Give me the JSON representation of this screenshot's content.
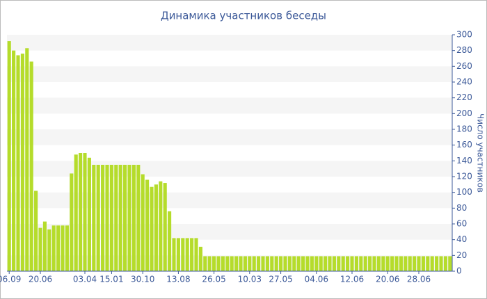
{
  "chart_data": {
    "type": "bar",
    "title": "Динамика участников беседы",
    "y_label": "Число участников",
    "categories": [
      "06.09",
      null,
      null,
      null,
      null,
      null,
      null,
      "20.06",
      null,
      null,
      null,
      null,
      null,
      null,
      null,
      null,
      null,
      "03.04",
      null,
      null,
      null,
      null,
      null,
      "15.01",
      null,
      null,
      null,
      null,
      null,
      null,
      "30.10",
      null,
      null,
      null,
      null,
      null,
      null,
      null,
      "13.08",
      null,
      null,
      null,
      null,
      null,
      null,
      null,
      "26.05",
      null,
      null,
      null,
      null,
      null,
      null,
      null,
      "10.03",
      null,
      null,
      null,
      null,
      null,
      null,
      "27.05",
      null,
      null,
      null,
      null,
      null,
      null,
      null,
      "04.06",
      null,
      null,
      null,
      null,
      null,
      null,
      null,
      "12.06",
      null,
      null,
      null,
      null,
      null,
      null,
      null,
      "20.06",
      null,
      null,
      null,
      null,
      null,
      null,
      "28.06",
      null,
      null,
      null,
      null,
      null,
      null,
      null
    ],
    "values": [
      292,
      280,
      274,
      276,
      283,
      266,
      102,
      55,
      63,
      53,
      58,
      58,
      58,
      58,
      124,
      148,
      150,
      150,
      144,
      135,
      135,
      135,
      135,
      135,
      135,
      135,
      135,
      135,
      135,
      135,
      123,
      116,
      107,
      110,
      114,
      112,
      76,
      42,
      42,
      42,
      42,
      42,
      42,
      31,
      19,
      19,
      19,
      19,
      19,
      19,
      19,
      19,
      19,
      19,
      19,
      19,
      19,
      19,
      19,
      19,
      19,
      19,
      19,
      19,
      19,
      19,
      19,
      19,
      19,
      19,
      19,
      19,
      19,
      19,
      19,
      19,
      19,
      19,
      19,
      19,
      19,
      19,
      19,
      19,
      19,
      19,
      19,
      19,
      19,
      19,
      19,
      19,
      19,
      19,
      19,
      19,
      19,
      19,
      19,
      19
    ],
    "color": "#b5dc2b",
    "ylim": [
      0,
      300
    ],
    "yticks": [
      0,
      20,
      40,
      60,
      80,
      100,
      120,
      140,
      160,
      180,
      200,
      220,
      240,
      260,
      280,
      300
    ],
    "grid": true
  }
}
